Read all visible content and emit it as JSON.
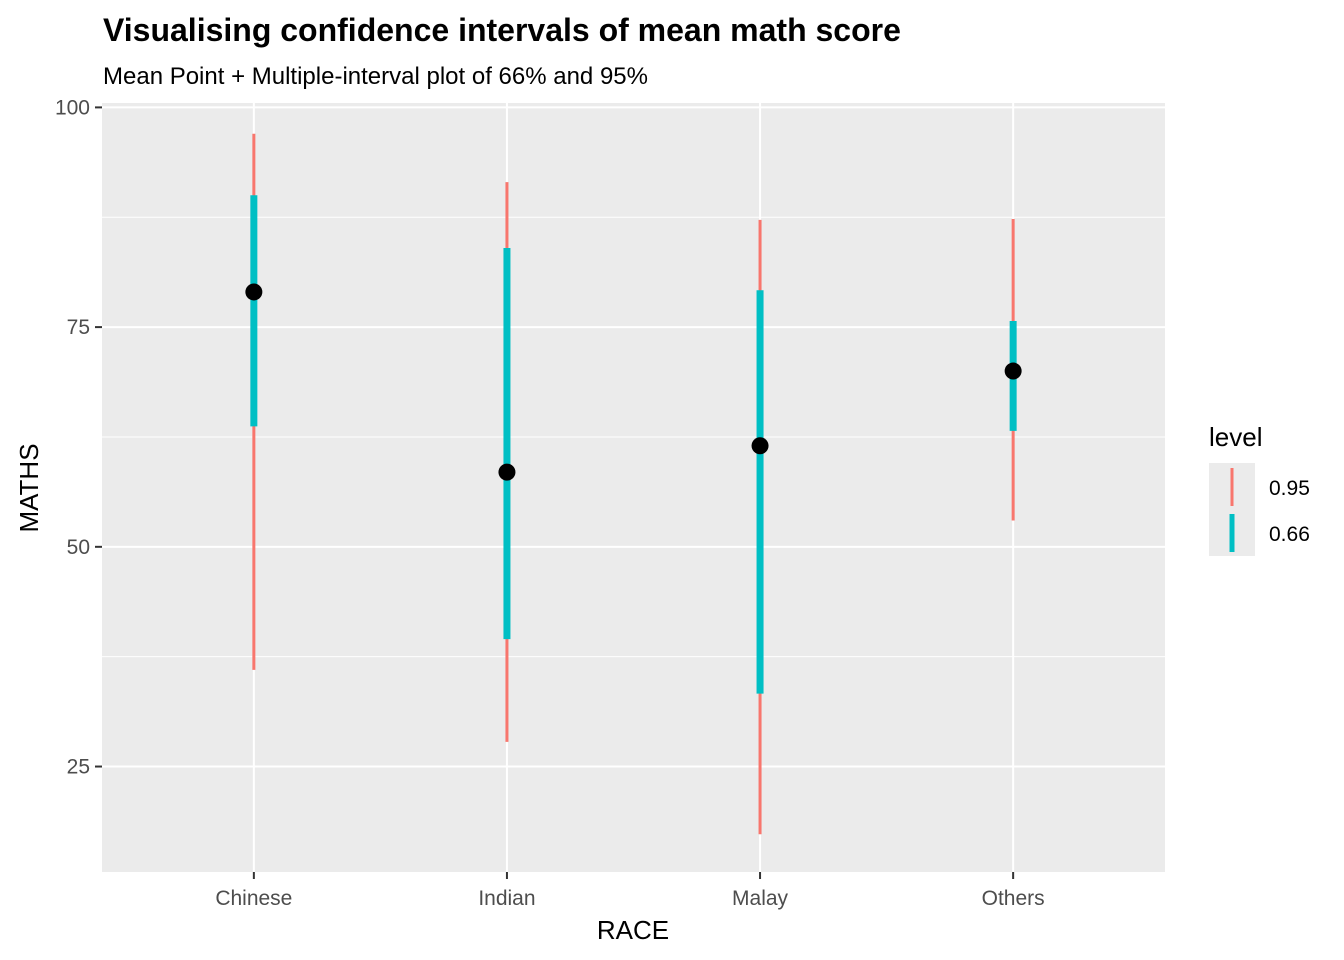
{
  "chart_data": {
    "type": "interval",
    "title": "Visualising confidence intervals of mean math score",
    "subtitle": "Mean Point + Multiple-interval plot of 66% and 95%",
    "xlabel": "RACE",
    "ylabel": "MATHS",
    "categories": [
      "Chinese",
      "Indian",
      "Malay",
      "Others"
    ],
    "ylim": [
      13,
      100.5
    ],
    "yticks": [
      25,
      50,
      75,
      100
    ],
    "yticks_labels": [
      "25",
      "50",
      "75",
      "100"
    ],
    "grid": true,
    "legend": {
      "title": "level",
      "position": "right",
      "entries": [
        {
          "label": "0.95",
          "color": "#F8766D"
        },
        {
          "label": "0.66",
          "color": "#00BFC4"
        }
      ]
    },
    "series": [
      {
        "level": "0.95",
        "color": "#F8766D",
        "lower": [
          36,
          27.8,
          17.3,
          53
        ],
        "upper": [
          97,
          91.5,
          87.2,
          87.3
        ]
      },
      {
        "level": "0.66",
        "color": "#00BFC4",
        "lower": [
          63.7,
          39.5,
          33.3,
          63.2
        ],
        "upper": [
          90,
          84,
          79.2,
          75.7
        ]
      }
    ],
    "means": [
      79,
      58.5,
      61.5,
      70
    ],
    "point_color": "#000000",
    "panel_background": "#EBEBEB",
    "grid_color": "#FFFFFF"
  }
}
